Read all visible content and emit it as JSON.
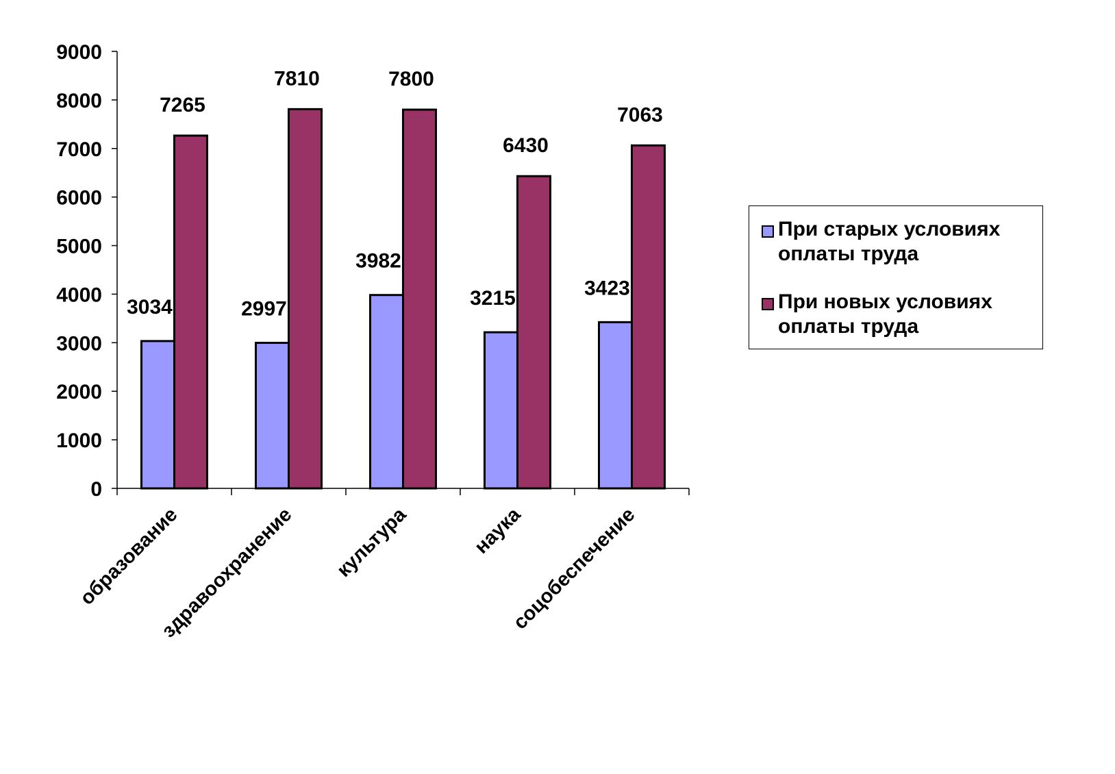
{
  "chart_data": {
    "type": "bar",
    "categories": [
      "образование",
      "здравоохранение",
      "культура",
      "наука",
      "соцобеспечение"
    ],
    "series": [
      {
        "name": "При старых условиях оплаты труда",
        "values": [
          3034,
          2997,
          3982,
          3215,
          3423
        ],
        "color": "#9999FF"
      },
      {
        "name": "При новых условиях оплаты труда",
        "values": [
          7265,
          7810,
          7800,
          6430,
          7063
        ],
        "color": "#993366"
      }
    ],
    "yticks": [
      "0",
      "1000",
      "2000",
      "3000",
      "4000",
      "5000",
      "6000",
      "7000",
      "8000",
      "9000"
    ],
    "ylim": [
      0,
      9000
    ],
    "grid": false,
    "legend": "right"
  }
}
